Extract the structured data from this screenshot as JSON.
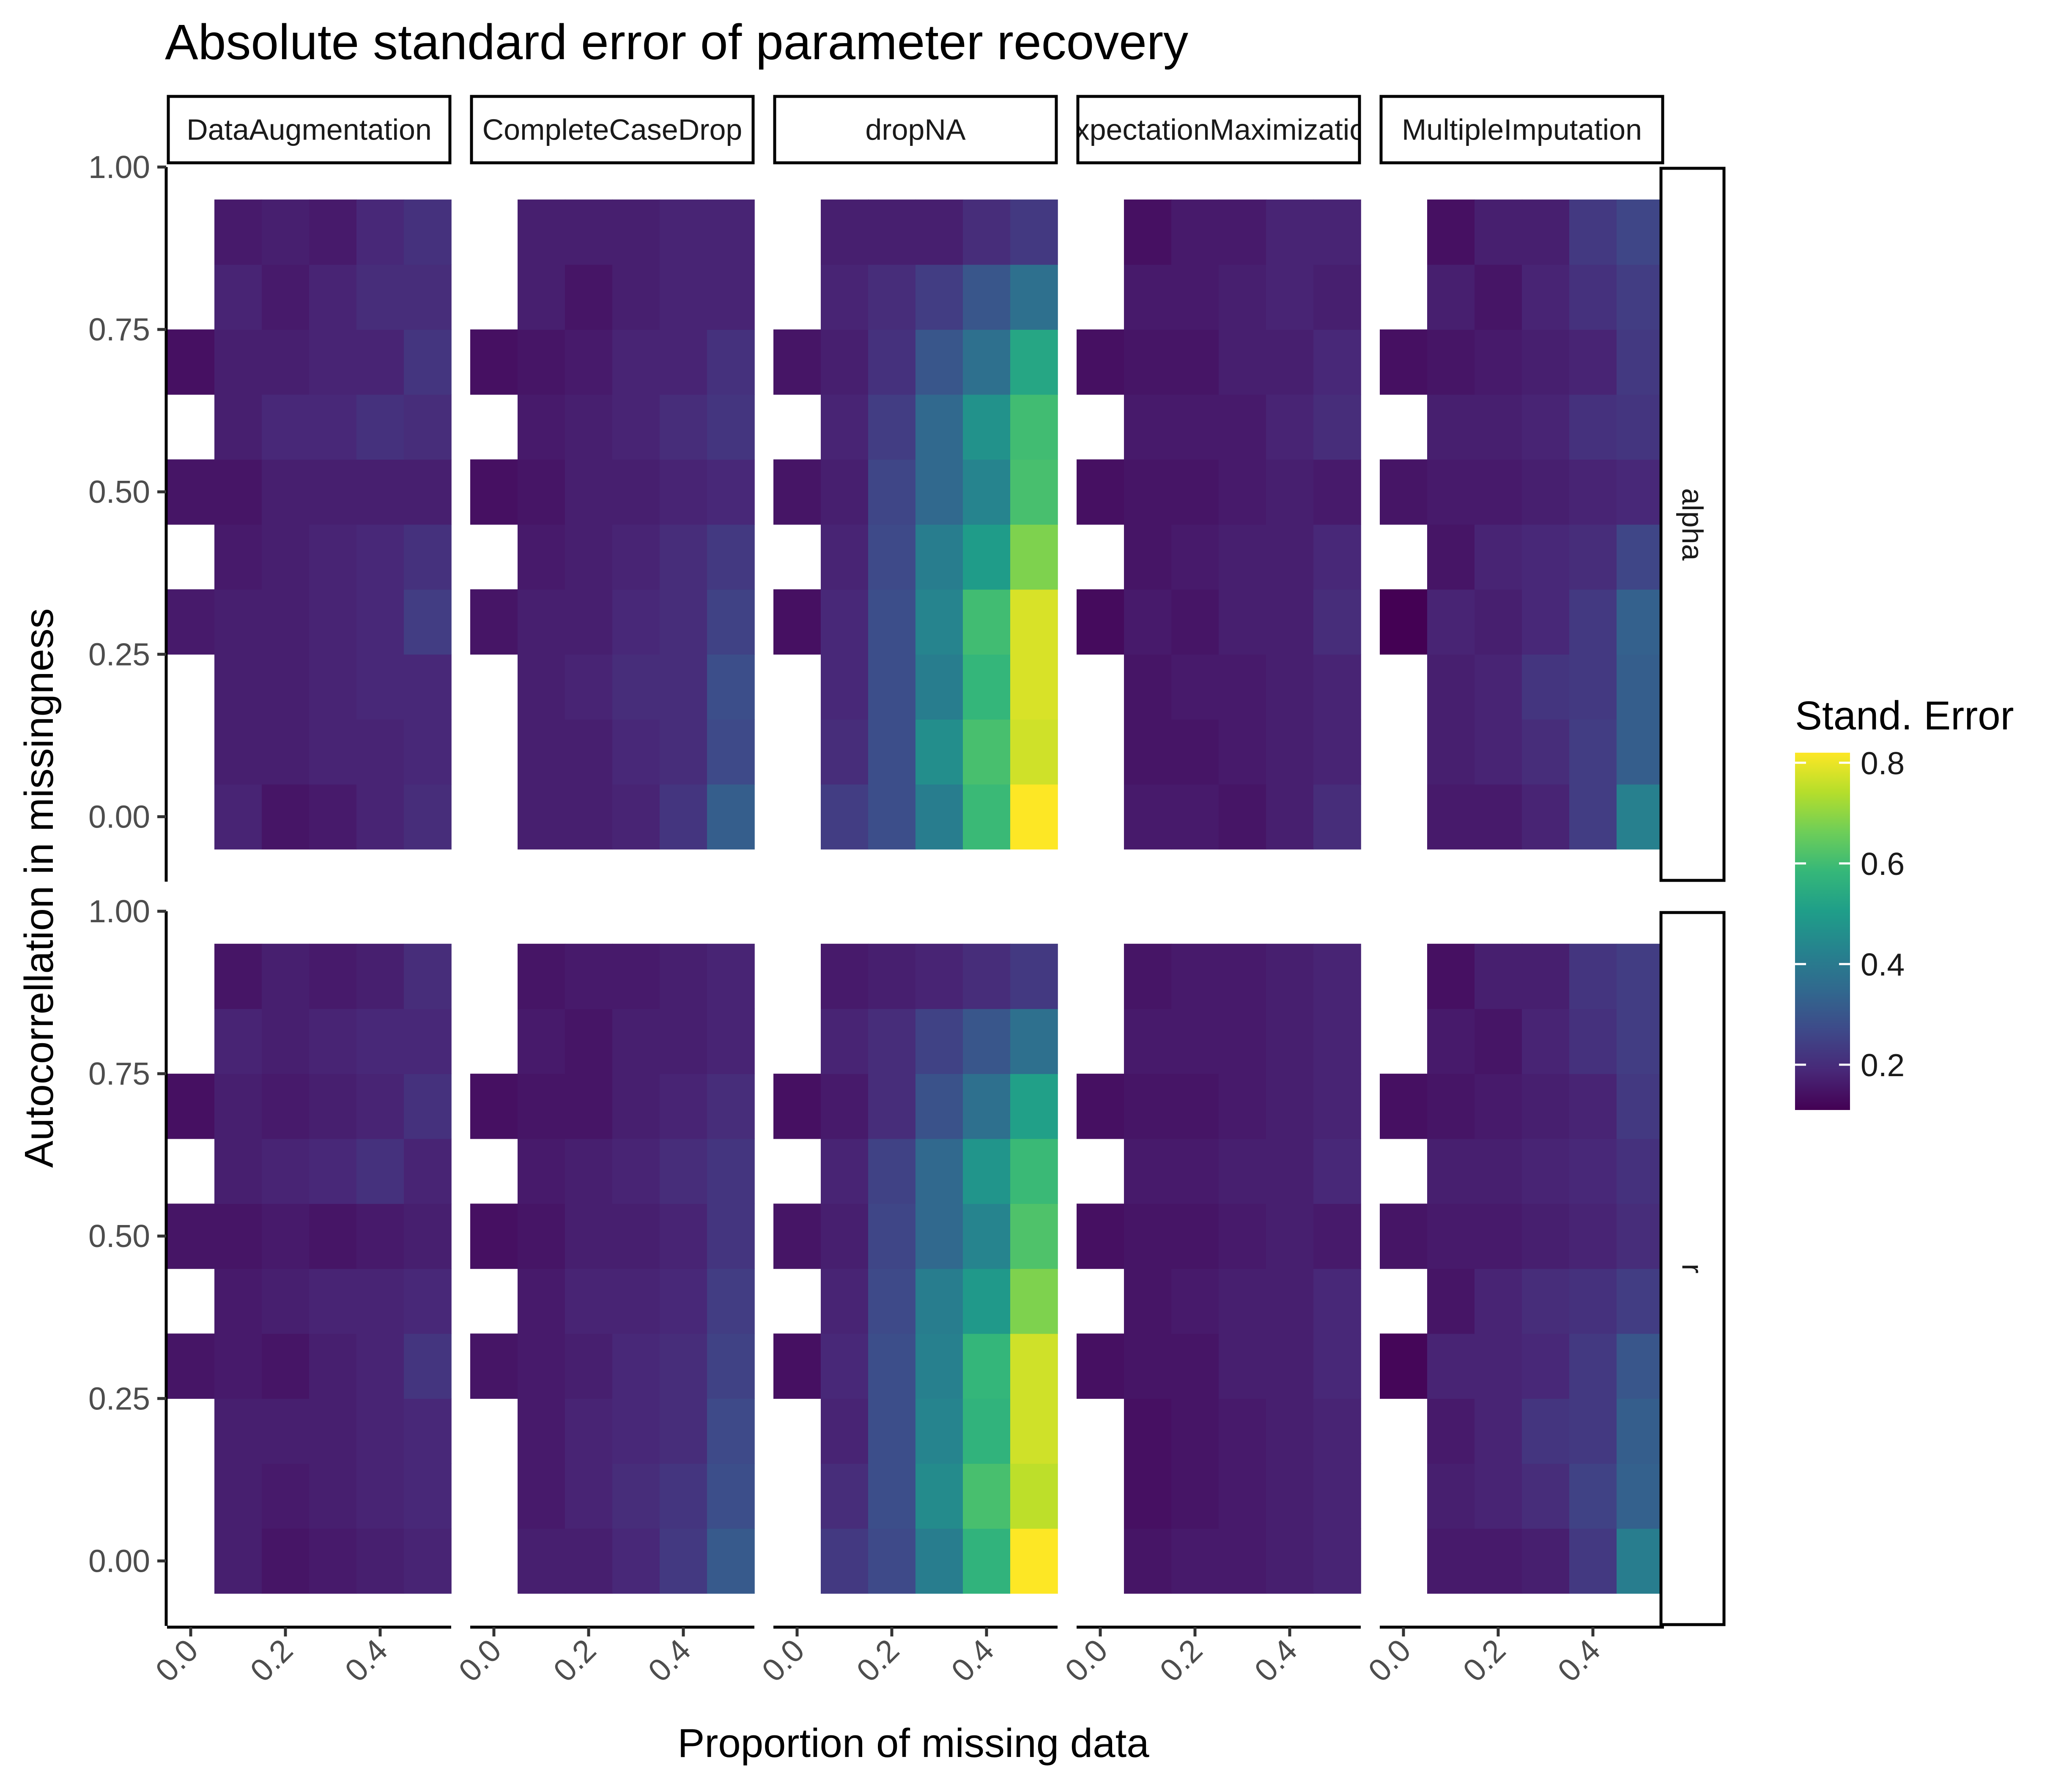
{
  "chart_data": {
    "type": "heatmap",
    "title": "Absolute standard error of parameter recovery",
    "xlabel": "Proportion of missing data",
    "ylabel": "Autocorrellation in missingness",
    "x_ticks": [
      "0.0",
      "0.2",
      "0.4"
    ],
    "y_ticks": [
      "0.00",
      "0.25",
      "0.50",
      "0.75",
      "1.00"
    ],
    "xlim": [
      -0.05,
      0.55
    ],
    "ylim": [
      -0.1,
      1.0
    ],
    "legend": {
      "title": "Stand. Error",
      "position": "right",
      "range": [
        0.11,
        0.82
      ],
      "ticks": [
        "0.2",
        "0.4",
        "0.6",
        "0.8"
      ],
      "colormap": "viridis"
    },
    "facet_columns": [
      "DataAugmentation",
      "CompleteCaseDrop",
      "dropNA",
      "ExpectationMaximization",
      "MultipleImputation"
    ],
    "facet_rows": [
      "alpha",
      "r"
    ],
    "x_values": [
      0.0,
      0.1,
      0.2,
      0.3,
      0.4,
      0.5
    ],
    "y_values": [
      0.0,
      0.1,
      0.2,
      0.3,
      0.4,
      0.5,
      0.6,
      0.7,
      0.8,
      0.9
    ],
    "cells_note": "rows indexed by y_values (0.0 at index 0), columns by x_values; null = no cell",
    "panels": [
      {
        "column": "DataAugmentation",
        "row": "alpha",
        "values": [
          [
            null,
            0.18,
            0.15,
            0.16,
            0.18,
            0.2
          ],
          [
            null,
            0.17,
            0.17,
            0.18,
            0.18,
            0.19
          ],
          [
            null,
            0.17,
            0.17,
            0.18,
            0.19,
            0.19
          ],
          [
            0.16,
            0.17,
            0.17,
            0.18,
            0.19,
            0.24
          ],
          [
            null,
            0.16,
            0.17,
            0.18,
            0.19,
            0.21
          ],
          [
            0.15,
            0.15,
            0.17,
            0.17,
            0.17,
            0.17
          ],
          [
            null,
            0.17,
            0.19,
            0.19,
            0.21,
            0.2
          ],
          [
            0.14,
            0.17,
            0.17,
            0.18,
            0.18,
            0.22
          ],
          [
            null,
            0.18,
            0.16,
            0.18,
            0.2,
            0.2
          ],
          [
            null,
            0.16,
            0.17,
            0.16,
            0.19,
            0.21
          ]
        ]
      },
      {
        "column": "CompleteCaseDrop",
        "row": "alpha",
        "values": [
          [
            null,
            0.17,
            0.17,
            0.18,
            0.22,
            0.32
          ],
          [
            null,
            0.17,
            0.17,
            0.19,
            0.2,
            0.27
          ],
          [
            null,
            0.17,
            0.18,
            0.2,
            0.2,
            0.28
          ],
          [
            0.15,
            0.17,
            0.17,
            0.19,
            0.2,
            0.25
          ],
          [
            null,
            0.16,
            0.17,
            0.18,
            0.2,
            0.23
          ],
          [
            0.14,
            0.15,
            0.17,
            0.17,
            0.18,
            0.19
          ],
          [
            null,
            0.16,
            0.17,
            0.18,
            0.2,
            0.22
          ],
          [
            0.14,
            0.15,
            0.16,
            0.18,
            0.18,
            0.21
          ],
          [
            null,
            0.17,
            0.15,
            0.17,
            0.18,
            0.18
          ],
          [
            null,
            0.17,
            0.17,
            0.17,
            0.18,
            0.18
          ]
        ]
      },
      {
        "column": "dropNA",
        "row": "alpha",
        "values": [
          [
            null,
            0.24,
            0.28,
            0.41,
            0.59,
            0.82
          ],
          [
            null,
            0.2,
            0.28,
            0.46,
            0.61,
            0.77
          ],
          [
            null,
            0.19,
            0.28,
            0.41,
            0.58,
            0.78
          ],
          [
            0.14,
            0.19,
            0.28,
            0.43,
            0.6,
            0.78
          ],
          [
            null,
            0.18,
            0.27,
            0.41,
            0.5,
            0.68
          ],
          [
            0.15,
            0.17,
            0.26,
            0.35,
            0.43,
            0.61
          ],
          [
            null,
            0.18,
            0.24,
            0.35,
            0.47,
            0.6
          ],
          [
            0.15,
            0.17,
            0.21,
            0.3,
            0.37,
            0.53
          ],
          [
            null,
            0.18,
            0.2,
            0.24,
            0.3,
            0.37
          ],
          [
            null,
            0.17,
            0.17,
            0.17,
            0.2,
            0.23
          ]
        ]
      },
      {
        "column": "ExpectationMaximization",
        "row": "alpha",
        "values": [
          [
            null,
            0.16,
            0.16,
            0.15,
            0.17,
            0.2
          ],
          [
            null,
            0.15,
            0.15,
            0.16,
            0.17,
            0.18
          ],
          [
            null,
            0.15,
            0.16,
            0.16,
            0.17,
            0.18
          ],
          [
            0.13,
            0.16,
            0.15,
            0.17,
            0.17,
            0.2
          ],
          [
            null,
            0.15,
            0.16,
            0.17,
            0.17,
            0.19
          ],
          [
            0.14,
            0.15,
            0.15,
            0.16,
            0.17,
            0.16
          ],
          [
            null,
            0.16,
            0.16,
            0.16,
            0.18,
            0.2
          ],
          [
            0.14,
            0.15,
            0.15,
            0.17,
            0.17,
            0.19
          ],
          [
            null,
            0.16,
            0.16,
            0.17,
            0.18,
            0.17
          ],
          [
            null,
            0.14,
            0.16,
            0.16,
            0.18,
            0.18
          ]
        ]
      },
      {
        "column": "MultipleImputation",
        "row": "alpha",
        "values": [
          [
            null,
            0.16,
            0.16,
            0.18,
            0.24,
            0.42
          ],
          [
            null,
            0.17,
            0.18,
            0.2,
            0.24,
            0.32
          ],
          [
            null,
            0.17,
            0.18,
            0.22,
            0.23,
            0.32
          ],
          [
            0.11,
            0.18,
            0.17,
            0.19,
            0.23,
            0.33
          ],
          [
            null,
            0.15,
            0.18,
            0.19,
            0.2,
            0.26
          ],
          [
            0.15,
            0.16,
            0.16,
            0.17,
            0.18,
            0.19
          ],
          [
            null,
            0.17,
            0.17,
            0.18,
            0.21,
            0.22
          ],
          [
            0.14,
            0.15,
            0.16,
            0.17,
            0.18,
            0.23
          ],
          [
            null,
            0.17,
            0.15,
            0.18,
            0.21,
            0.24
          ],
          [
            null,
            0.14,
            0.17,
            0.17,
            0.23,
            0.26
          ]
        ]
      },
      {
        "column": "DataAugmentation",
        "row": "r",
        "values": [
          [
            null,
            0.17,
            0.15,
            0.16,
            0.17,
            0.18
          ],
          [
            null,
            0.17,
            0.16,
            0.17,
            0.18,
            0.19
          ],
          [
            null,
            0.17,
            0.17,
            0.17,
            0.18,
            0.19
          ],
          [
            0.15,
            0.16,
            0.15,
            0.17,
            0.18,
            0.22
          ],
          [
            null,
            0.16,
            0.17,
            0.18,
            0.18,
            0.19
          ],
          [
            0.15,
            0.15,
            0.16,
            0.15,
            0.16,
            0.17
          ],
          [
            null,
            0.17,
            0.18,
            0.19,
            0.21,
            0.18
          ],
          [
            0.14,
            0.17,
            0.16,
            0.17,
            0.18,
            0.21
          ],
          [
            null,
            0.18,
            0.17,
            0.18,
            0.19,
            0.19
          ],
          [
            null,
            0.15,
            0.17,
            0.16,
            0.17,
            0.2
          ]
        ]
      },
      {
        "column": "CompleteCaseDrop",
        "row": "r",
        "values": [
          [
            null,
            0.17,
            0.17,
            0.19,
            0.23,
            0.31
          ],
          [
            null,
            0.16,
            0.18,
            0.2,
            0.22,
            0.28
          ],
          [
            null,
            0.16,
            0.18,
            0.19,
            0.2,
            0.27
          ],
          [
            0.15,
            0.16,
            0.17,
            0.19,
            0.2,
            0.25
          ],
          [
            null,
            0.16,
            0.18,
            0.18,
            0.19,
            0.24
          ],
          [
            0.14,
            0.15,
            0.17,
            0.17,
            0.18,
            0.22
          ],
          [
            null,
            0.16,
            0.17,
            0.18,
            0.2,
            0.22
          ],
          [
            0.14,
            0.15,
            0.15,
            0.17,
            0.18,
            0.2
          ],
          [
            null,
            0.16,
            0.15,
            0.17,
            0.17,
            0.18
          ],
          [
            null,
            0.15,
            0.16,
            0.16,
            0.17,
            0.18
          ]
        ]
      },
      {
        "column": "dropNA",
        "row": "r",
        "values": [
          [
            null,
            0.23,
            0.27,
            0.41,
            0.57,
            0.82
          ],
          [
            null,
            0.2,
            0.28,
            0.45,
            0.61,
            0.75
          ],
          [
            null,
            0.18,
            0.28,
            0.43,
            0.57,
            0.77
          ],
          [
            0.14,
            0.19,
            0.28,
            0.42,
            0.58,
            0.77
          ],
          [
            null,
            0.18,
            0.27,
            0.41,
            0.49,
            0.68
          ],
          [
            0.15,
            0.17,
            0.26,
            0.35,
            0.43,
            0.62
          ],
          [
            null,
            0.18,
            0.25,
            0.35,
            0.48,
            0.59
          ],
          [
            0.14,
            0.16,
            0.2,
            0.29,
            0.37,
            0.51
          ],
          [
            null,
            0.18,
            0.2,
            0.25,
            0.3,
            0.37
          ],
          [
            null,
            0.16,
            0.17,
            0.18,
            0.2,
            0.23
          ]
        ]
      },
      {
        "column": "ExpectationMaximization",
        "row": "r",
        "values": [
          [
            null,
            0.15,
            0.16,
            0.16,
            0.17,
            0.18
          ],
          [
            null,
            0.14,
            0.15,
            0.16,
            0.17,
            0.18
          ],
          [
            null,
            0.14,
            0.15,
            0.16,
            0.17,
            0.18
          ],
          [
            0.14,
            0.15,
            0.15,
            0.17,
            0.17,
            0.19
          ],
          [
            null,
            0.15,
            0.16,
            0.17,
            0.17,
            0.19
          ],
          [
            0.14,
            0.15,
            0.15,
            0.16,
            0.17,
            0.16
          ],
          [
            null,
            0.16,
            0.16,
            0.17,
            0.17,
            0.19
          ],
          [
            0.14,
            0.15,
            0.15,
            0.16,
            0.17,
            0.18
          ],
          [
            null,
            0.16,
            0.16,
            0.16,
            0.17,
            0.18
          ],
          [
            null,
            0.15,
            0.16,
            0.16,
            0.17,
            0.18
          ]
        ]
      },
      {
        "column": "MultipleImputation",
        "row": "r",
        "values": [
          [
            null,
            0.16,
            0.16,
            0.17,
            0.23,
            0.41
          ],
          [
            null,
            0.17,
            0.18,
            0.2,
            0.25,
            0.33
          ],
          [
            null,
            0.16,
            0.18,
            0.22,
            0.23,
            0.32
          ],
          [
            0.12,
            0.18,
            0.18,
            0.19,
            0.23,
            0.3
          ],
          [
            null,
            0.15,
            0.18,
            0.2,
            0.21,
            0.24
          ],
          [
            0.15,
            0.16,
            0.16,
            0.17,
            0.18,
            0.2
          ],
          [
            null,
            0.17,
            0.17,
            0.18,
            0.19,
            0.21
          ],
          [
            0.14,
            0.15,
            0.16,
            0.17,
            0.18,
            0.23
          ],
          [
            null,
            0.16,
            0.15,
            0.18,
            0.21,
            0.24
          ],
          [
            null,
            0.14,
            0.17,
            0.17,
            0.22,
            0.24
          ]
        ]
      }
    ]
  }
}
